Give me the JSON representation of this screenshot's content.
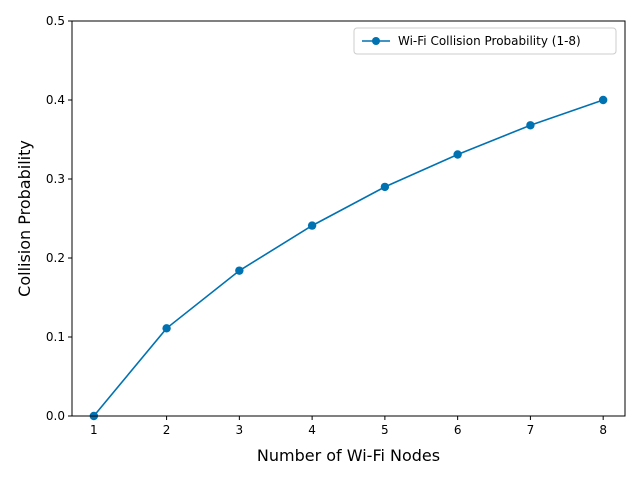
{
  "chart_data": {
    "type": "line",
    "title": "",
    "xlabel": "Number of Wi-Fi Nodes",
    "ylabel": "Collision Probability",
    "x": [
      1,
      2,
      3,
      4,
      5,
      6,
      7,
      8
    ],
    "series": [
      {
        "name": "Wi-Fi Collision Probability (1-8)",
        "color": "#0072b2",
        "marker": "circle",
        "values": [
          0.0,
          0.111,
          0.184,
          0.241,
          0.29,
          0.331,
          0.368,
          0.4
        ]
      }
    ],
    "xlim": [
      0.7,
      8.3
    ],
    "ylim": [
      0,
      0.5
    ],
    "xticks": [
      "1",
      "2",
      "3",
      "4",
      "5",
      "6",
      "7",
      "8"
    ],
    "yticks": [
      "0.0",
      "0.1",
      "0.2",
      "0.3",
      "0.4",
      "0.5"
    ],
    "grid": false,
    "legend_position": "top-right"
  }
}
